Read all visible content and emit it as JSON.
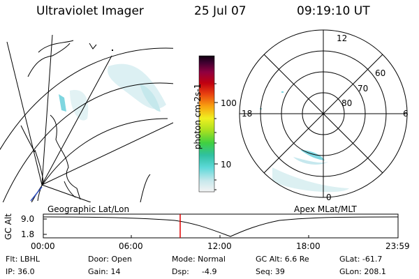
{
  "header": {
    "title": "Ultraviolet Imager",
    "date": "25 Jul 07",
    "time": "09:19:10 UT"
  },
  "colorbar": {
    "label": "photon cm-2s-1",
    "ticks": [
      "100",
      "10"
    ]
  },
  "polar_plot": {
    "mlt_labels": [
      "12",
      "18",
      "6",
      "0"
    ],
    "lat_labels": [
      "60",
      "70",
      "80"
    ]
  },
  "timeline": {
    "left_label": "Geographic Lat/Lon",
    "right_label": "Apex MLat/MLT",
    "yaxis_label": "GC Alt",
    "y_ticks": [
      "9.0",
      "1.8"
    ],
    "x_ticks": [
      "00:00",
      "06:00",
      "12:00",
      "18:00",
      "23:59"
    ]
  },
  "info": {
    "flt": "Flt: LBHL",
    "ip": "IP: 36.0",
    "door": "Door: Open",
    "gain": "Gain: 14",
    "mode": "Mode: Normal",
    "dsp_label": "Dsp:",
    "dsp_value": "-4.9",
    "gcalt": "GC Alt: 6.6 Re",
    "seq": "Seq: 39",
    "glat": "GLat: -61.7",
    "glon": "GLon: 208.1"
  },
  "colors": {
    "current_time_marker": "#e00000",
    "aurora": "#9fdde0"
  }
}
